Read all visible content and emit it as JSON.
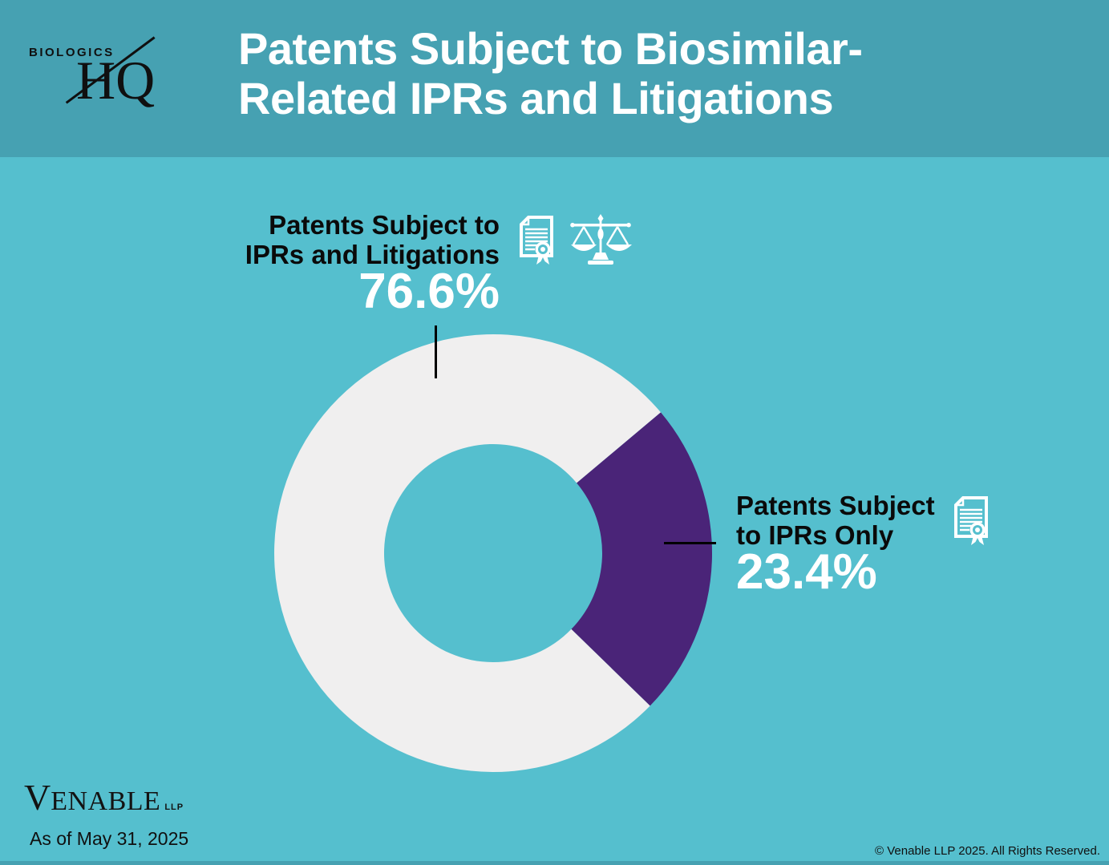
{
  "header": {
    "logo_top": "BIOLOGICS",
    "logo_bottom": "HQ",
    "title_line1": "Patents Subject to Biosimilar-",
    "title_line2": "Related IPRs and Litigations"
  },
  "chart_data": {
    "type": "pie",
    "donut": true,
    "title": "Patents Subject to Biosimilar-Related IPRs and Litigations",
    "rotation_deg": 134.2,
    "slices": [
      {
        "label": "Patents Subject to IPRs and Litigations",
        "value": 76.6,
        "color": "#F0EFEF"
      },
      {
        "label": "Patents Subject to IPRs Only",
        "value": 23.4,
        "color": "#4A2478"
      }
    ],
    "legend_position": "callout-labels",
    "annotation": "As of May 31, 2025"
  },
  "callouts": {
    "left": {
      "line1": "Patents Subject to",
      "line2": "IPRs and Litigations",
      "value": "76.6%",
      "icons": [
        "certificate-icon",
        "scales-of-justice-icon"
      ]
    },
    "right": {
      "line1": "Patents Subject",
      "line2": "to IPRs Only",
      "value": "23.4%",
      "icons": [
        "certificate-icon"
      ]
    }
  },
  "footer": {
    "venable_v": "V",
    "venable_rest": "ENABLE",
    "venable_llp": "LLP",
    "as_of": "As of May 31, 2025",
    "copyright": "© Venable LLP 2025. All Rights Reserved."
  },
  "colors": {
    "header_teal": "#46A1B2",
    "background_teal": "#55BFCE",
    "slice_white": "#F0EFEF",
    "slice_purple": "#4A2478",
    "text_black": "#0A0A0A",
    "text_white": "#FFFFFF"
  }
}
